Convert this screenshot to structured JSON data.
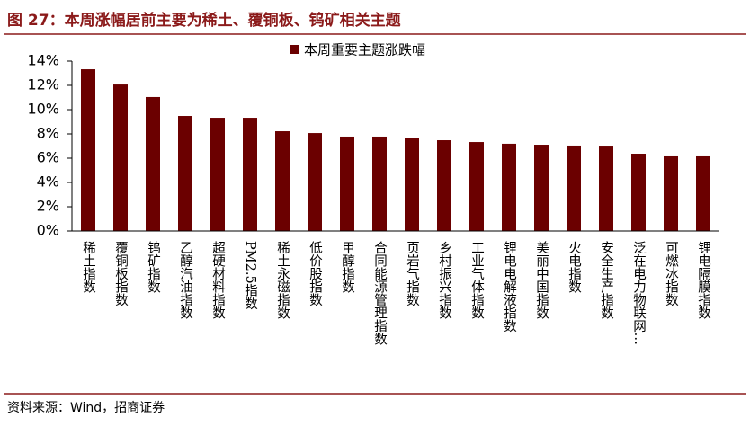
{
  "chart_data": {
    "type": "bar",
    "title": "图 27：本周涨幅居前主要为稀土、覆铜板、钨矿相关主题",
    "legend": "本周重要主题涨跌幅",
    "source": "资料来源：Wind，招商证券",
    "categories": [
      "稀土指数",
      "覆铜板指数",
      "钨矿指数",
      "乙醇汽油指数",
      "超硬材料指数",
      "PM2.5指数",
      "稀土永磁指数",
      "低价股指数",
      "甲醇指数",
      "合同能源管理指数",
      "页岩气指数",
      "乡村振兴指数",
      "工业气体指数",
      "锂电电解液指数",
      "美丽中国指数",
      "火电指数",
      "安全生产指数",
      "泛在电力物联网…",
      "可燃冰指数",
      "锂电隔膜指数"
    ],
    "values": [
      13.33,
      12.07,
      11.04,
      9.48,
      9.33,
      9.33,
      8.22,
      8.07,
      7.78,
      7.78,
      7.63,
      7.48,
      7.33,
      7.19,
      7.11,
      7.04,
      6.96,
      6.37,
      6.15,
      6.15
    ],
    "color": "#6b0000",
    "ylim": [
      0,
      14
    ],
    "yticks": [
      {
        "value": 0,
        "label": "0%"
      },
      {
        "value": 2,
        "label": "2%"
      },
      {
        "value": 4,
        "label": "4%"
      },
      {
        "value": 6,
        "label": "6%"
      },
      {
        "value": 8,
        "label": "8%"
      },
      {
        "value": 10,
        "label": "10%"
      },
      {
        "value": 12,
        "label": "12%"
      },
      {
        "value": 14,
        "label": "14%"
      }
    ],
    "grid": false
  }
}
